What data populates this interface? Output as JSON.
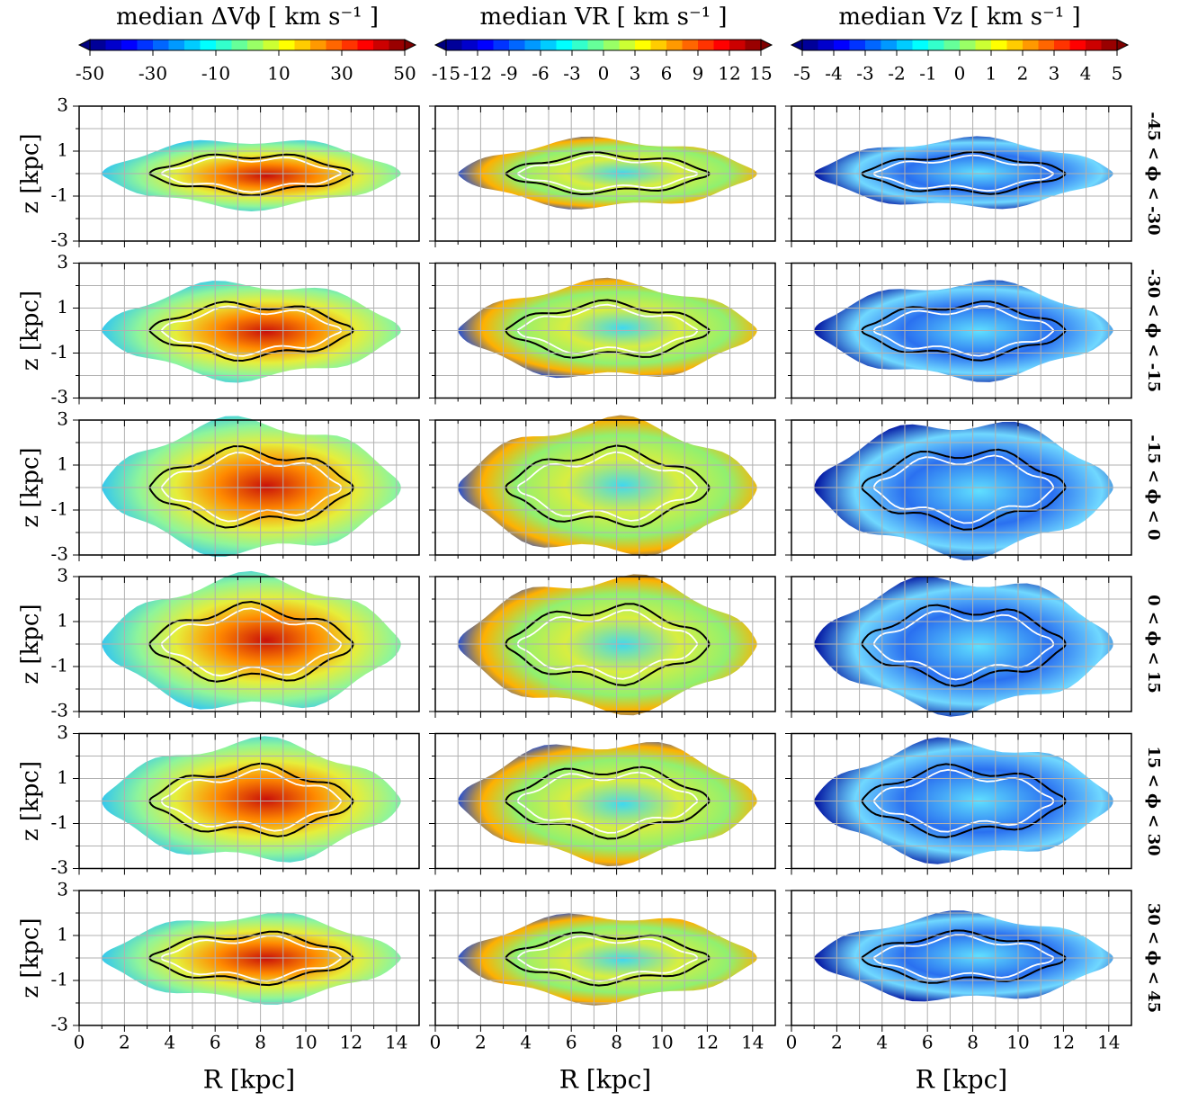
{
  "chart_data": [
    {
      "type": "heatmap",
      "title": "median ΔVϕ  [ km s⁻¹ ]",
      "colorbar": {
        "lim": [
          -50,
          50
        ],
        "ticks": [
          -50,
          -30,
          -10,
          10,
          30,
          50
        ]
      },
      "xlabel": "R [kpc]",
      "xlim": [
        0,
        15
      ],
      "xticks": [
        0,
        2,
        4,
        6,
        8,
        10,
        12,
        14
      ],
      "xminor": [
        1,
        3,
        5,
        7,
        9,
        11,
        13
      ],
      "ylabel": "z [kpc]",
      "ylim": [
        -3,
        3
      ],
      "yticks": [
        3,
        1,
        -1,
        -3
      ],
      "yminor": [
        2,
        0,
        -2
      ],
      "grid": true
    },
    {
      "type": "heatmap",
      "title": "median VR  [ km s⁻¹ ]",
      "colorbar": {
        "lim": [
          -15,
          15
        ],
        "ticks": [
          -15,
          -12,
          -9,
          -6,
          -3,
          0,
          3,
          6,
          9,
          12,
          15
        ]
      },
      "xlabel": "R [kpc]",
      "xlim": [
        0,
        15
      ],
      "xticks": [
        0,
        2,
        4,
        6,
        8,
        10,
        12,
        14
      ],
      "xminor": [
        1,
        3,
        5,
        7,
        9,
        11,
        13
      ]
    },
    {
      "type": "heatmap",
      "title": "median Vz  [ km s⁻¹ ]",
      "colorbar": {
        "lim": [
          -5,
          5
        ],
        "ticks": [
          -5,
          -4,
          -3,
          -2,
          -1,
          0,
          1,
          2,
          3,
          4,
          5
        ]
      },
      "xlabel": "R [kpc]",
      "xlim": [
        0,
        15
      ],
      "xticks": [
        0,
        2,
        4,
        6,
        8,
        10,
        12,
        14
      ],
      "xminor": [
        1,
        3,
        5,
        7,
        9,
        11,
        13
      ],
      "row_labels": [
        "-45 < ϕ < -30",
        "-30 < ϕ < -15",
        "-15 < ϕ < 0",
        "0 < ϕ < 15",
        "15 < ϕ < 30",
        "30 < ϕ < 45"
      ]
    }
  ]
}
